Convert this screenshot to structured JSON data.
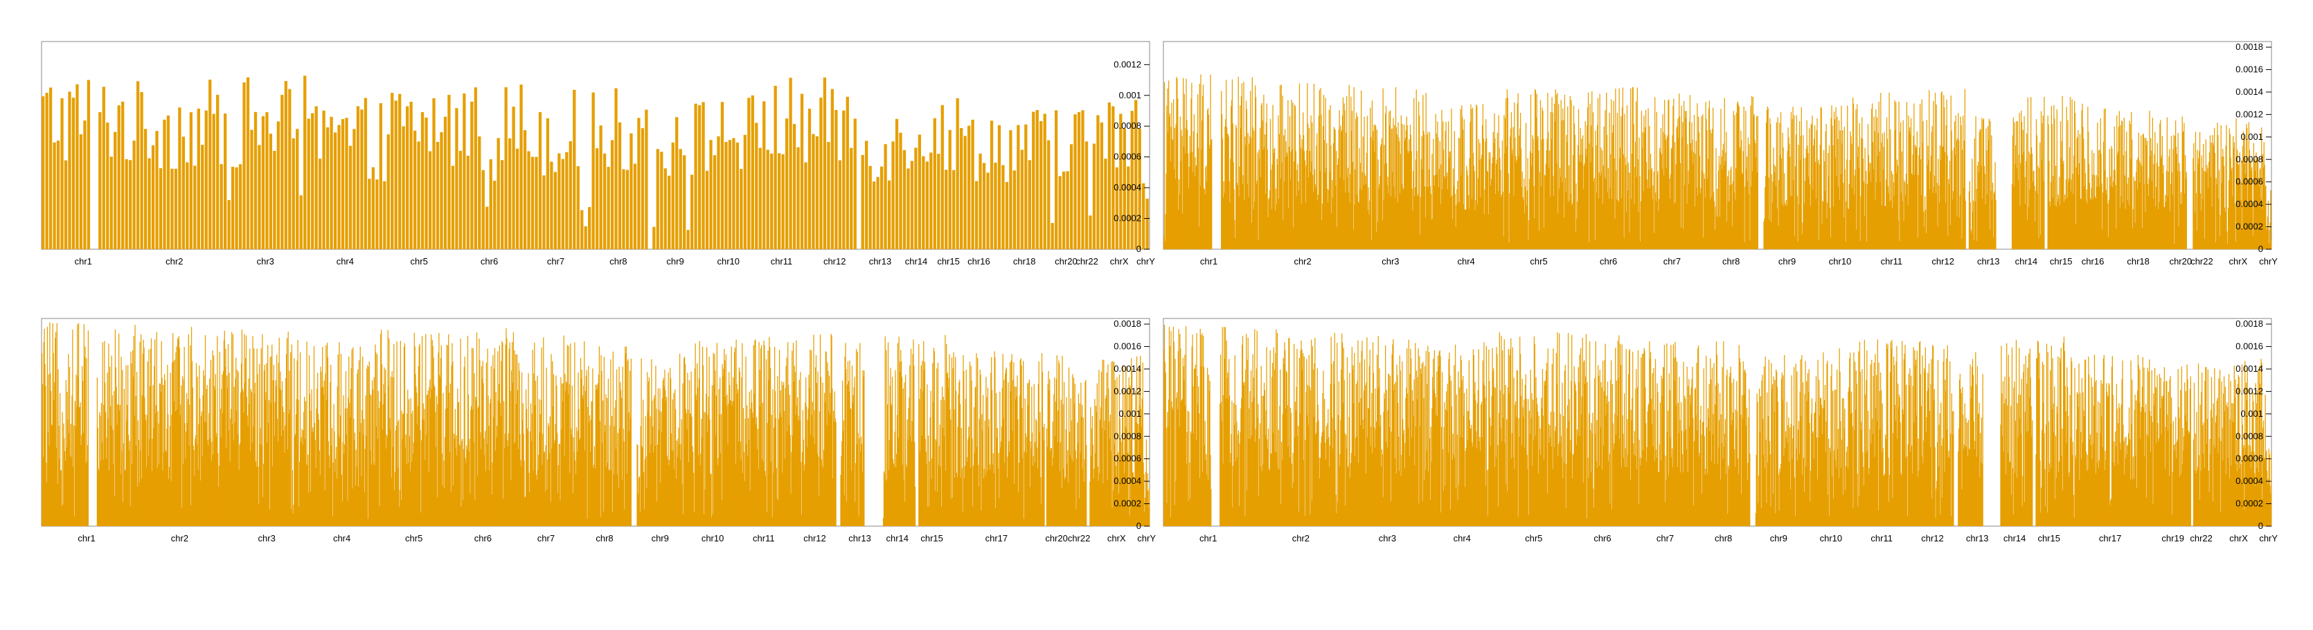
{
  "colors": {
    "bar": "#E69F00",
    "frame": "#888888",
    "text": "#000000"
  },
  "chart_data": [
    {
      "type": "bar",
      "bar_style": "discrete",
      "title": "",
      "xlabel": "",
      "ylabel": "",
      "y_axis_side": "right",
      "ylim": [
        0,
        0.00135
      ],
      "yticks": [
        0,
        0.0002,
        0.0004,
        0.0006,
        0.0008,
        0.001,
        0.0012
      ],
      "ytick_labels": [
        "0",
        "0.0002",
        "0.0004",
        "0.0006",
        "0.0008",
        "0.001",
        "0.0012"
      ],
      "categories": [
        "chr1",
        "chr2",
        "chr3",
        "chr4",
        "chr5",
        "chr6",
        "chr7",
        "chr8",
        "chr9",
        "chr10",
        "chr11",
        "chr12",
        "chr13",
        "chr14",
        "chr15",
        "chr16",
        "chr18",
        "chr20",
        "chr22",
        "chrX",
        "chrY"
      ],
      "chromosomes": [
        {
          "name": "chr1",
          "bins": 22,
          "level": 0.00098,
          "gaps": [
            [
              13,
              15
            ]
          ]
        },
        {
          "name": "chr2",
          "bins": 26,
          "level": 0.00092
        },
        {
          "name": "chr3",
          "bins": 22,
          "level": 0.00094
        },
        {
          "name": "chr4",
          "bins": 20,
          "level": 0.00082
        },
        {
          "name": "chr5",
          "bins": 19,
          "level": 0.00092
        },
        {
          "name": "chr6",
          "bins": 18,
          "level": 0.00093
        },
        {
          "name": "chr7",
          "bins": 17,
          "level": 0.00087
        },
        {
          "name": "chr8",
          "bins": 16,
          "level": 0.00088
        },
        {
          "name": "chr9",
          "bins": 14,
          "level": 0.00082,
          "gaps": [
            [
              0,
              1
            ]
          ]
        },
        {
          "name": "chr10",
          "bins": 14,
          "level": 0.00085
        },
        {
          "name": "chr11",
          "bins": 14,
          "level": 0.00094
        },
        {
          "name": "chr12",
          "bins": 14,
          "level": 0.00093,
          "gaps": [
            [
              13,
              14
            ]
          ]
        },
        {
          "name": "chr13",
          "bins": 10,
          "level": 0.00078
        },
        {
          "name": "chr14",
          "bins": 9,
          "level": 0.00088
        },
        {
          "name": "chr15",
          "bins": 8,
          "level": 0.00085
        },
        {
          "name": "chr16",
          "bins": 8,
          "level": 0.0008
        },
        {
          "name": "chr18",
          "bins": 16,
          "level": 0.00078
        },
        {
          "name": "chr20",
          "bins": 6,
          "level": 0.00082
        },
        {
          "name": "chr22",
          "bins": 5,
          "level": 0.0008
        },
        {
          "name": "chrX",
          "bins": 12,
          "level": 0.00084
        },
        {
          "name": "chrY",
          "bins": 2,
          "level": 0.00055
        }
      ]
    },
    {
      "type": "bar",
      "bar_style": "dense",
      "title": "",
      "xlabel": "",
      "ylabel": "",
      "y_axis_side": "right",
      "ylim": [
        0,
        0.00185
      ],
      "yticks": [
        0,
        0.0002,
        0.0004,
        0.0006,
        0.0008,
        0.001,
        0.0012,
        0.0014,
        0.0016,
        0.0018
      ],
      "ytick_labels": [
        "0",
        "0.0002",
        "0.0004",
        "0.0006",
        "0.0008",
        "0.001",
        "0.0012",
        "0.0014",
        "0.0016",
        "0.0018"
      ],
      "categories": [
        "chr1",
        "chr2",
        "chr3",
        "chr4",
        "chr5",
        "chr6",
        "chr7",
        "chr8",
        "chr9",
        "chr10",
        "chr11",
        "chr12",
        "chr13",
        "chr14",
        "chr15",
        "chr16",
        "chr18",
        "chr20",
        "chr22",
        "chrX",
        "chrY"
      ],
      "chromosomes": [
        {
          "name": "chr1",
          "bins": 150,
          "level": 0.0012,
          "gaps": [
            [
              80,
              95
            ]
          ]
        },
        {
          "name": "chr2",
          "bins": 160,
          "level": 0.00115
        },
        {
          "name": "chr3",
          "bins": 130,
          "level": 0.00112
        },
        {
          "name": "chr4",
          "bins": 120,
          "level": 0.001
        },
        {
          "name": "chr5",
          "bins": 120,
          "level": 0.0011
        },
        {
          "name": "chr6",
          "bins": 110,
          "level": 0.00112
        },
        {
          "name": "chr7",
          "bins": 100,
          "level": 0.00108
        },
        {
          "name": "chr8",
          "bins": 95,
          "level": 0.00105,
          "gaps": [
            [
              92,
              95
            ]
          ]
        },
        {
          "name": "chr9",
          "bins": 90,
          "level": 0.00098,
          "gaps": [
            [
              0,
              6
            ]
          ]
        },
        {
          "name": "chr10",
          "bins": 85,
          "level": 0.00105
        },
        {
          "name": "chr11",
          "bins": 85,
          "level": 0.00108
        },
        {
          "name": "chr12",
          "bins": 85,
          "level": 0.0011,
          "gaps": [
            [
              80,
              85
            ]
          ]
        },
        {
          "name": "chr13",
          "bins": 65,
          "level": 0.00095,
          "gaps": [
            [
              45,
              65
            ]
          ]
        },
        {
          "name": "chr14",
          "bins": 60,
          "level": 0.0011,
          "gaps": [
            [
              0,
              6
            ]
          ]
        },
        {
          "name": "chr15",
          "bins": 55,
          "level": 0.00108,
          "gaps": [
            [
              0,
              5
            ]
          ]
        },
        {
          "name": "chr16",
          "bins": 50,
          "level": 0.001
        },
        {
          "name": "chr18",
          "bins": 100,
          "level": 0.00098
        },
        {
          "name": "chr20",
          "bins": 40,
          "level": 0.00095,
          "gaps": [
            [
              30,
              40
            ]
          ]
        },
        {
          "name": "chr22",
          "bins": 30,
          "level": 0.0009
        },
        {
          "name": "chrX",
          "bins": 90,
          "level": 0.00092
        },
        {
          "name": "chrY",
          "bins": 10,
          "level": 0.00045
        }
      ]
    },
    {
      "type": "area",
      "bar_style": "dense",
      "title": "",
      "xlabel": "",
      "ylabel": "",
      "y_axis_side": "right",
      "ylim": [
        0,
        0.00185
      ],
      "yticks": [
        0,
        0.0002,
        0.0004,
        0.0006,
        0.0008,
        0.001,
        0.0012,
        0.0014,
        0.0016,
        0.0018
      ],
      "ytick_labels": [
        "0",
        "0.0002",
        "0.0004",
        "0.0006",
        "0.0008",
        "0.001",
        "0.0012",
        "0.0014",
        "0.0016",
        "0.0018"
      ],
      "categories": [
        "chr1",
        "chr2",
        "chr3",
        "chr4",
        "chr5",
        "chr6",
        "chr7",
        "chr8",
        "chr9",
        "chr10",
        "chr11",
        "chr12",
        "chr13",
        "chr14",
        "chr15",
        "chr17",
        "chr20",
        "chr22",
        "chrX",
        "chrY"
      ],
      "chromosomes": [
        {
          "name": "chr1",
          "bins": 150,
          "level": 0.0014,
          "gaps": [
            [
              78,
              92
            ]
          ]
        },
        {
          "name": "chr2",
          "bins": 160,
          "level": 0.00138
        },
        {
          "name": "chr3",
          "bins": 130,
          "level": 0.00135
        },
        {
          "name": "chr4",
          "bins": 120,
          "level": 0.00128
        },
        {
          "name": "chr5",
          "bins": 120,
          "level": 0.00135
        },
        {
          "name": "chr6",
          "bins": 110,
          "level": 0.00136
        },
        {
          "name": "chr7",
          "bins": 100,
          "level": 0.00132
        },
        {
          "name": "chr8",
          "bins": 95,
          "level": 0.0013,
          "gaps": [
            [
              92,
              95
            ]
          ]
        },
        {
          "name": "chr9",
          "bins": 90,
          "level": 0.0012,
          "gaps": [
            [
              0,
              6
            ]
          ]
        },
        {
          "name": "chr10",
          "bins": 85,
          "level": 0.00128
        },
        {
          "name": "chr11",
          "bins": 85,
          "level": 0.0013
        },
        {
          "name": "chr12",
          "bins": 85,
          "level": 0.00132,
          "gaps": [
            [
              78,
              85
            ]
          ]
        },
        {
          "name": "chr13",
          "bins": 65,
          "level": 0.00128,
          "gaps": [
            [
              40,
              65
            ]
          ]
        },
        {
          "name": "chr14",
          "bins": 60,
          "level": 0.0013,
          "gaps": [
            [
              0,
              6
            ]
          ]
        },
        {
          "name": "chr15",
          "bins": 55,
          "level": 0.00132,
          "gaps": [
            [
              0,
              5
            ]
          ]
        },
        {
          "name": "chr17",
          "bins": 160,
          "level": 0.0012
        },
        {
          "name": "chr20",
          "bins": 40,
          "level": 0.00118,
          "gaps": [
            [
              0,
              3
            ]
          ]
        },
        {
          "name": "chr22",
          "bins": 35,
          "level": 0.00112,
          "gaps": [
            [
              30,
              35
            ]
          ]
        },
        {
          "name": "chrX",
          "bins": 90,
          "level": 0.00118
        },
        {
          "name": "chrY",
          "bins": 10,
          "level": 0.0006
        }
      ]
    },
    {
      "type": "area",
      "bar_style": "dense",
      "title": "",
      "xlabel": "",
      "ylabel": "",
      "y_axis_side": "right",
      "ylim": [
        0,
        0.00185
      ],
      "yticks": [
        0,
        0.0002,
        0.0004,
        0.0006,
        0.0008,
        0.001,
        0.0012,
        0.0014,
        0.0016,
        0.0018
      ],
      "ytick_labels": [
        "0",
        "0.0002",
        "0.0004",
        "0.0006",
        "0.0008",
        "0.001",
        "0.0012",
        "0.0014",
        "0.0016",
        "0.0018"
      ],
      "categories": [
        "chr1",
        "chr2",
        "chr3",
        "chr4",
        "chr5",
        "chr6",
        "chr7",
        "chr8",
        "chr9",
        "chr10",
        "chr11",
        "chr12",
        "chr13",
        "chr14",
        "chr15",
        "chr17",
        "chr19",
        "chr22",
        "chrX",
        "chrY"
      ],
      "chromosomes": [
        {
          "name": "chr1",
          "bins": 150,
          "level": 0.00138,
          "gaps": [
            [
              80,
              94
            ]
          ]
        },
        {
          "name": "chr2",
          "bins": 160,
          "level": 0.00135
        },
        {
          "name": "chr3",
          "bins": 130,
          "level": 0.00132
        },
        {
          "name": "chr4",
          "bins": 120,
          "level": 0.00126
        },
        {
          "name": "chr5",
          "bins": 120,
          "level": 0.00133
        },
        {
          "name": "chr6",
          "bins": 110,
          "level": 0.00134
        },
        {
          "name": "chr7",
          "bins": 100,
          "level": 0.0013
        },
        {
          "name": "chr8",
          "bins": 95,
          "level": 0.00128,
          "gaps": [
            [
              92,
              95
            ]
          ]
        },
        {
          "name": "chr9",
          "bins": 90,
          "level": 0.00118,
          "gaps": [
            [
              0,
              6
            ]
          ]
        },
        {
          "name": "chr10",
          "bins": 85,
          "level": 0.00126
        },
        {
          "name": "chr11",
          "bins": 85,
          "level": 0.00128
        },
        {
          "name": "chr12",
          "bins": 85,
          "level": 0.0013,
          "gaps": [
            [
              78,
              85
            ]
          ]
        },
        {
          "name": "chr13",
          "bins": 65,
          "level": 0.00126,
          "gaps": [
            [
              42,
              65
            ]
          ]
        },
        {
          "name": "chr14",
          "bins": 60,
          "level": 0.00128,
          "gaps": [
            [
              0,
              6
            ]
          ]
        },
        {
          "name": "chr15",
          "bins": 55,
          "level": 0.0013,
          "gaps": [
            [
              0,
              5
            ]
          ]
        },
        {
          "name": "chr17",
          "bins": 150,
          "level": 0.00118
        },
        {
          "name": "chr19",
          "bins": 60,
          "level": 0.00115
        },
        {
          "name": "chr22",
          "bins": 35,
          "level": 0.00112,
          "gaps": [
            [
              0,
              4
            ]
          ]
        },
        {
          "name": "chrX",
          "bins": 90,
          "level": 0.00116
        },
        {
          "name": "chrY",
          "bins": 10,
          "level": 0.00058
        }
      ]
    }
  ]
}
